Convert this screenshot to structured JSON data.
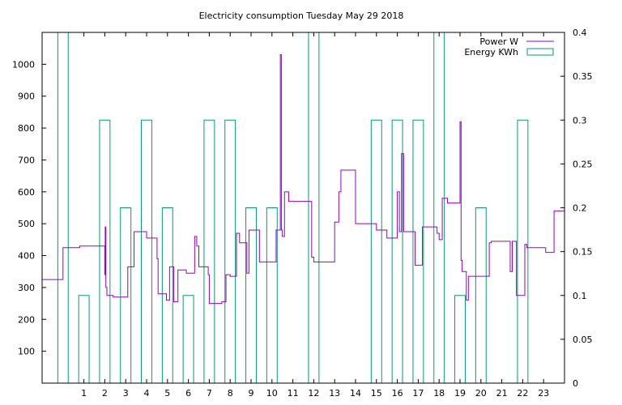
{
  "chart_data": {
    "type": "line",
    "title": "Electricity consumption Tuesday May 29 2018",
    "xlabel": "",
    "ylabel": "",
    "y2label": "",
    "grid": false,
    "legend_placement": "top-right",
    "xlim": [
      -1,
      24
    ],
    "ylim": [
      0,
      1100
    ],
    "y2lim": [
      0,
      0.4
    ],
    "x_ticks": [
      "1",
      "2",
      "3",
      "4",
      "5",
      "6",
      "7",
      "8",
      "9",
      "10",
      "11",
      "12",
      "13",
      "14",
      "15",
      "16",
      "17",
      "18",
      "19",
      "20",
      "21",
      "22",
      "23"
    ],
    "y_ticks": [
      "100",
      "200",
      "300",
      "400",
      "500",
      "600",
      "700",
      "800",
      "900",
      "1000"
    ],
    "y2_ticks": [
      "0",
      "0.05",
      "0.1",
      "0.15",
      "0.2",
      "0.25",
      "0.3",
      "0.35",
      "0.4"
    ],
    "colors": {
      "power": "#9400d3",
      "energy": "#009e73"
    },
    "series": [
      {
        "name": "Power W",
        "axis": "left",
        "style": "step",
        "x": [
          -1.0,
          0.0,
          0.8,
          1.0,
          2.0,
          2.02,
          2.05,
          2.1,
          2.12,
          2.4,
          3.0,
          3.1,
          3.3,
          3.4,
          3.9,
          4.0,
          4.3,
          4.4,
          4.5,
          4.55,
          4.9,
          4.95,
          5.1,
          5.3,
          5.4,
          5.5,
          5.9,
          6.3,
          6.35,
          6.4,
          6.5,
          6.9,
          6.95,
          7.0,
          7.4,
          7.6,
          7.7,
          7.8,
          7.9,
          8.0,
          8.3,
          8.45,
          8.8,
          8.9,
          9.3,
          9.4,
          9.45,
          9.5,
          9.8,
          10.2,
          10.35,
          10.4,
          10.45,
          10.5,
          10.55,
          10.6,
          10.7,
          10.8,
          11.6,
          11.9,
          12.0,
          13.0,
          13.1,
          13.2,
          13.3,
          14.0,
          15.0,
          15.3,
          15.5,
          16.0,
          16.1,
          16.15,
          16.2,
          16.3,
          16.8,
          16.85,
          17.2,
          17.9,
          18.0,
          18.15,
          18.2,
          18.4,
          18.95,
          19.0,
          19.05,
          19.1,
          19.3,
          19.4,
          20.0,
          20.4,
          20.5,
          21.0,
          21.3,
          21.35,
          21.4,
          21.5,
          21.7,
          21.9,
          22.1,
          22.2,
          23.0,
          23.1,
          23.5,
          24.0
        ],
        "y": [
          325,
          425,
          430,
          430,
          340,
          490,
          300,
          275,
          275,
          270,
          270,
          365,
          365,
          475,
          475,
          455,
          455,
          455,
          390,
          280,
          280,
          260,
          365,
          255,
          255,
          355,
          345,
          460,
          460,
          430,
          365,
          365,
          340,
          250,
          250,
          255,
          255,
          340,
          340,
          335,
          470,
          440,
          345,
          480,
          480,
          380,
          380,
          380,
          380,
          480,
          480,
          1030,
          480,
          460,
          460,
          600,
          600,
          570,
          570,
          395,
          380,
          505,
          505,
          600,
          668,
          500,
          480,
          480,
          455,
          600,
          475,
          475,
          720,
          475,
          475,
          370,
          490,
          470,
          450,
          580,
          580,
          565,
          565,
          820,
          385,
          350,
          260,
          335,
          335,
          440,
          445,
          445,
          445,
          445,
          350,
          445,
          275,
          275,
          435,
          425,
          425,
          410,
          540,
          510
        ]
      },
      {
        "name": "Energy KWh",
        "axis": "right",
        "style": "boxes",
        "x": [
          0,
          1,
          2,
          3,
          4,
          5,
          6,
          7,
          8,
          9,
          10,
          11,
          12,
          13,
          14,
          15,
          16,
          17,
          18,
          19,
          20,
          21,
          22,
          23
        ],
        "y": [
          0.4,
          0.1,
          0.3,
          0.2,
          0.3,
          0.2,
          0.1,
          0.3,
          0.3,
          0.2,
          0.2,
          0,
          0.4,
          0,
          0,
          0.3,
          0.3,
          0.3,
          0.4,
          0.1,
          0.2,
          0,
          0.3,
          0
        ]
      }
    ]
  }
}
